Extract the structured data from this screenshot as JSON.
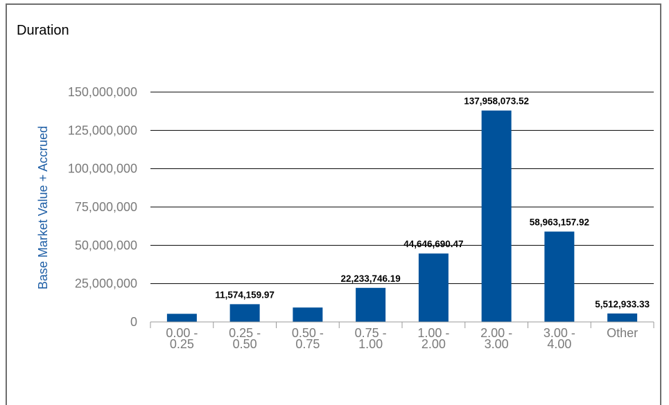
{
  "chart_data": {
    "type": "bar",
    "title": "Duration",
    "ylabel": "Base Market Value + Accrued",
    "xlabel": "",
    "ylim": [
      0,
      150000000
    ],
    "yticks": [
      0,
      25000000,
      50000000,
      75000000,
      100000000,
      125000000,
      150000000
    ],
    "ytick_labels": [
      "0",
      "25,000,000",
      "50,000,000",
      "75,000,000",
      "100,000,000",
      "125,000,000",
      "150,000,000"
    ],
    "categories": [
      [
        "0.00 -",
        "0.25"
      ],
      [
        "0.25 -",
        "0.50"
      ],
      [
        "0.50 -",
        "0.75"
      ],
      [
        "0.75 -",
        "1.00"
      ],
      [
        "1.00 -",
        "2.00"
      ],
      [
        "2.00 -",
        "3.00"
      ],
      [
        "3.00 -",
        "4.00"
      ],
      [
        "Other"
      ]
    ],
    "values": [
      5300000,
      11574159.97,
      9400000,
      22233746.19,
      44646690.47,
      137958073.52,
      58963157.92,
      5512933.33
    ],
    "data_labels": [
      "",
      "11,574,159.97",
      "",
      "22,233,746.19",
      "44,646,690.47",
      "137,958,073.52",
      "58,963,157.92",
      "5,512,933.33"
    ],
    "grid": true,
    "bar_color": "#00529b"
  }
}
